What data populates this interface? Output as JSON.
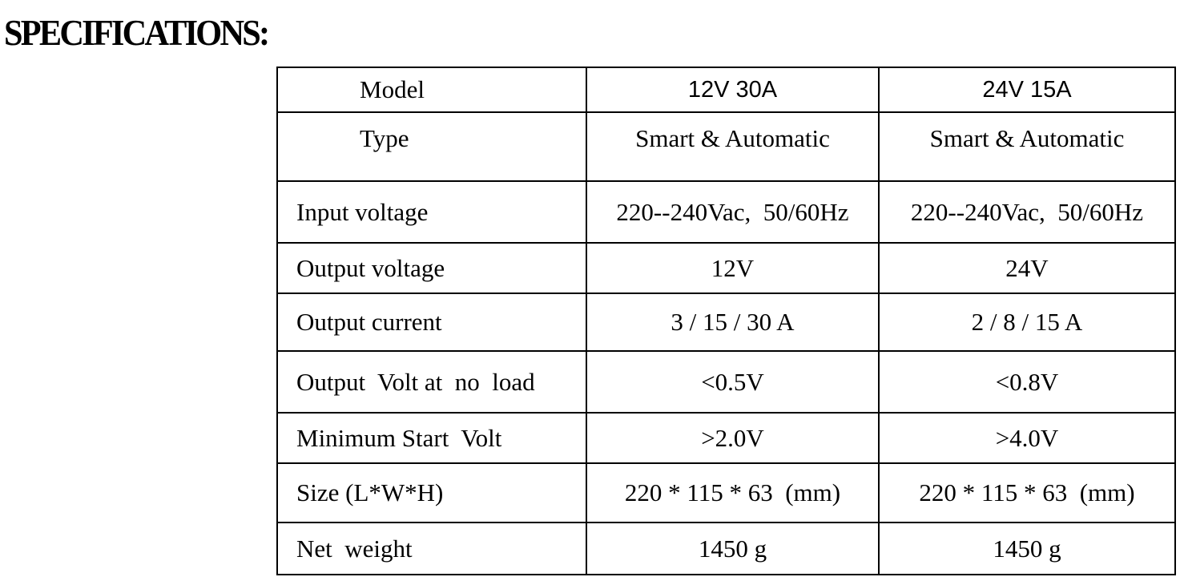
{
  "title": "SPECIFICATIONS:",
  "table": {
    "header": [
      "Model",
      "12V 30A",
      "24V 15A"
    ],
    "rows": [
      [
        "Type",
        "Smart & Automatic",
        "Smart & Automatic"
      ],
      [
        "Input voltage",
        "220--240Vac,  50/60Hz",
        "220--240Vac,  50/60Hz"
      ],
      [
        "Output voltage",
        "12V",
        "24V"
      ],
      [
        "Output current",
        "3 / 15 / 30 A",
        "2 / 8 / 15 A"
      ],
      [
        "Output  Volt at  no  load",
        "<0.5V",
        "<0.8V"
      ],
      [
        "Minimum Start  Volt",
        ">2.0V",
        ">4.0V"
      ],
      [
        "Size (L*W*H)",
        "220 * 115 * 63  (mm)",
        "220 * 115 * 63  (mm)"
      ],
      [
        "Net  weight",
        "1450 g",
        "1450 g"
      ]
    ]
  }
}
